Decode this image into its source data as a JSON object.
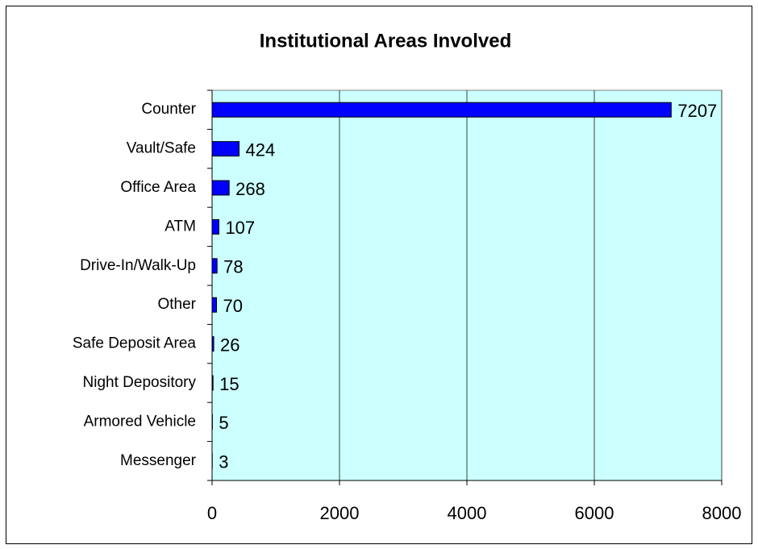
{
  "chart_data": {
    "type": "barh",
    "title": "Institutional Areas Involved",
    "categories": [
      "Counter",
      "Vault/Safe",
      "Office Area",
      "ATM",
      "Drive-In/Walk-Up",
      "Other",
      "Safe Deposit Area",
      "Night Depository",
      "Armored Vehicle",
      "Messenger"
    ],
    "values": [
      7207,
      424,
      268,
      107,
      78,
      70,
      26,
      15,
      5,
      3
    ],
    "color": "#0000ff",
    "plot_background": "#ccffff",
    "xlim": [
      0,
      8000
    ],
    "xticks": [
      0,
      2000,
      4000,
      6000,
      8000
    ],
    "grid": true
  }
}
